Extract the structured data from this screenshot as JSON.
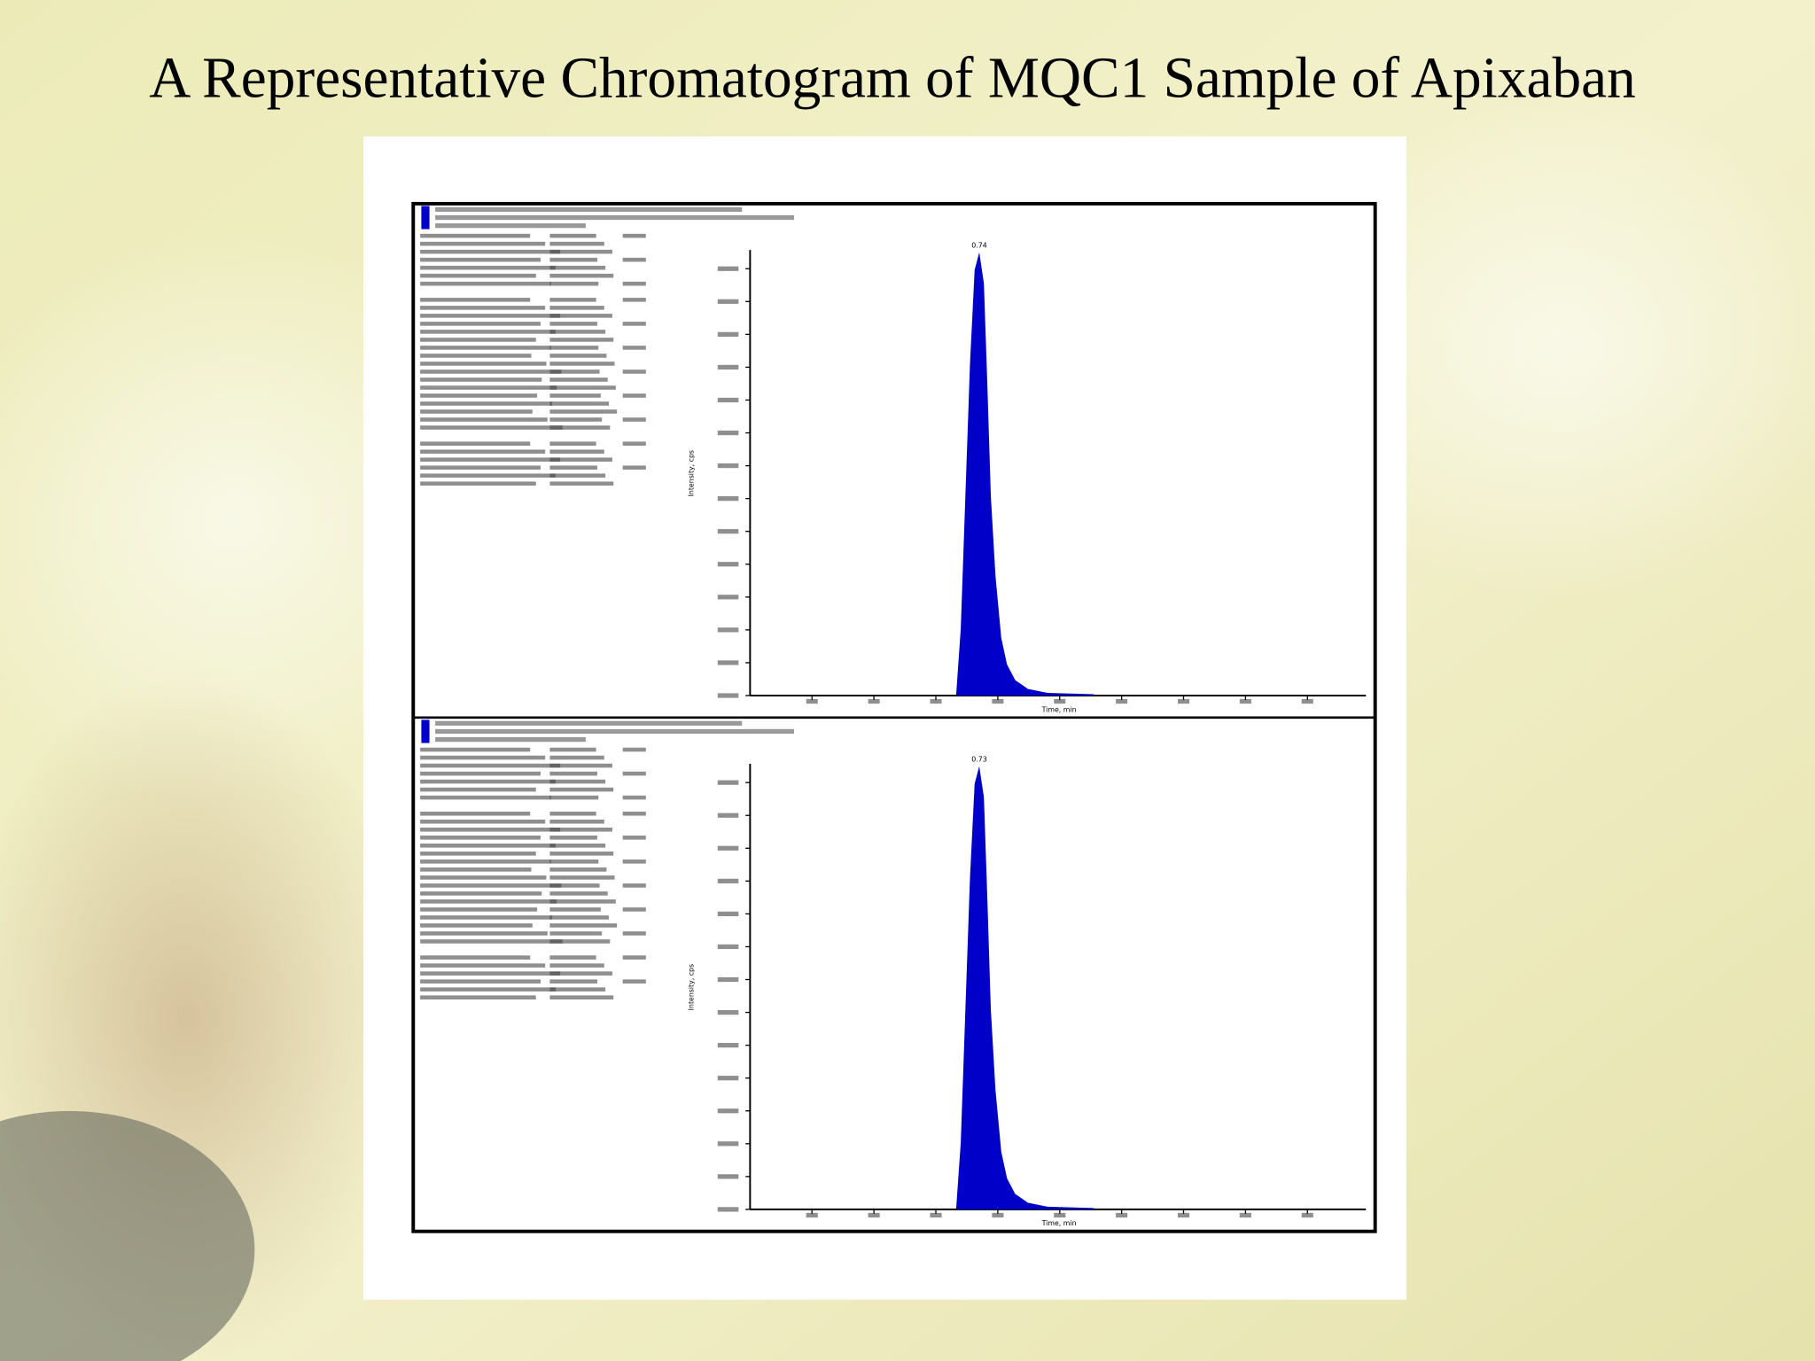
{
  "title": "A Representative Chromatogram of MQC1 Sample of Apixaban",
  "panels": [
    {
      "peak_label": "0.74",
      "x_axis_label": "Time, min",
      "y_axis_label": "Intensity, cps"
    },
    {
      "peak_label": "0.73",
      "x_axis_label": "Time, min",
      "y_axis_label": "Intensity, cps"
    }
  ]
}
